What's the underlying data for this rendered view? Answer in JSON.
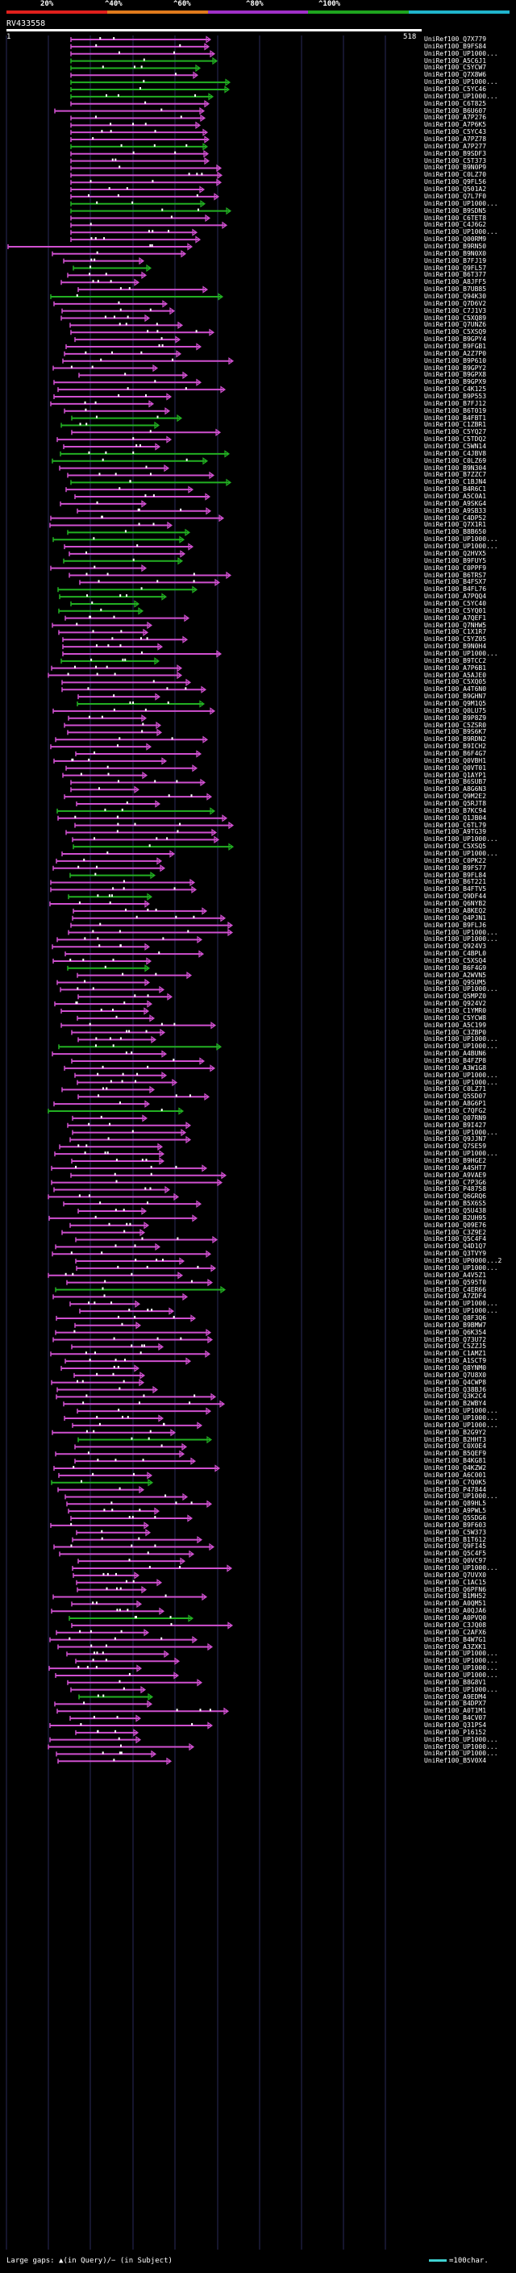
{
  "legend": {
    "labels": [
      "20%",
      "^40%",
      "^60%",
      "^80%",
      "^100%"
    ],
    "colors": [
      "#e0201c",
      "#e07a1c",
      "#a030c8",
      "#1ea51e",
      "#20b4cc"
    ]
  },
  "query": {
    "name": "RV433558",
    "start": "1",
    "end": "518"
  },
  "colors": {
    "magenta": "#d050d0",
    "green": "#22b022",
    "gray": "#888888",
    "cyan": "#40d0d0"
  },
  "hits": [
    "UniRef100_Q7X779",
    "UniRef100_B9FS84",
    "UniRef100_UP1000...",
    "UniRef100_A5C6J1",
    "UniRef100_C5YCW7",
    "UniRef100_Q7X8W6",
    "UniRef100_UP1000...",
    "UniRef100_C5YC46",
    "UniRef100_UP1000...",
    "UniRef100_C6T825",
    "UniRef100_B6U607",
    "UniRef100_A7P276",
    "UniRef100_A7P6K5",
    "UniRef100_C5YC43",
    "UniRef100_A7PZ78",
    "UniRef100_A7P277",
    "UniRef100_B9SDF3",
    "UniRef100_C5T373",
    "UniRef100_B9N0P9",
    "UniRef100_C0LZ70",
    "UniRef100_Q9FL56",
    "UniRef100_Q501A2",
    "UniRef100_Q7L7F0",
    "UniRef100_UP1000...",
    "UniRef100_B9SDN5",
    "UniRef100_C6TET8",
    "UniRef100_C4J6G2",
    "UniRef100_UP1000...",
    "UniRef100_Q00RM9",
    "UniRef100_B9RN50",
    "UniRef100_B9N0X0",
    "UniRef100_B7FJ19",
    "UniRef100_Q9FL57",
    "UniRef100_B6T377",
    "UniRef100_A8JFF5",
    "UniRef100_B7UB85",
    "UniRef100_Q94K30",
    "UniRef100_Q7D6V2",
    "UniRef100_C7J1V3",
    "UniRef100_C5XQ89",
    "UniRef100_Q7UNZ6",
    "UniRef100_C5XSQ9",
    "UniRef100_B9GPY4",
    "UniRef100_B9FGB1",
    "UniRef100_A2Z7P0",
    "UniRef100_B9P610",
    "UniRef100_B9GPY2",
    "UniRef100_B9GPX8",
    "UniRef100_B9GPX9",
    "UniRef100_C4K125",
    "UniRef100_B9P553",
    "UniRef100_B7FJ12",
    "UniRef100_B6T019",
    "UniRef100_B4FBT1",
    "UniRef100_C1ZBR1",
    "UniRef100_C5YQ27",
    "UniRef100_C5TDQ2",
    "UniRef100_C5WN14",
    "UniRef100_C4JBV8",
    "UniRef100_C0LZ69",
    "UniRef100_B9N304",
    "UniRef100_B7ZZC7",
    "UniRef100_C1BJN4",
    "UniRef100_B4R6C1",
    "UniRef100_A5C0A1",
    "UniRef100_A9SKG4",
    "UniRef100_A9SB33",
    "UniRef100_C4DP52",
    "UniRef100_Q7X1R1",
    "UniRef100_B8B650",
    "UniRef100_UP1000...",
    "UniRef100_UP1000...",
    "UniRef100_Q2HVX5",
    "UniRef100_B9FUY5",
    "UniRef100_C0PPF9",
    "UniRef100_B6TRS7",
    "UniRef100_B4FSX7",
    "UniRef100_B4FL76",
    "UniRef100_A7PQQ4",
    "UniRef100_C5YC40",
    "UniRef100_C5YQ01",
    "UniRef100_A7QEF1",
    "UniRef100_Q7NHW5",
    "UniRef100_C1X1R7",
    "UniRef100_C5YZ05",
    "UniRef100_B9N0H4",
    "UniRef100_UP1000...",
    "UniRef100_B9TCC2",
    "UniRef100_A7P6B1",
    "UniRef100_A5AJE0",
    "UniRef100_C5XQ05",
    "UniRef100_A4T6N0",
    "UniRef100_B9GHN7",
    "UniRef100_Q9M1Q5",
    "UniRef100_Q0LU75",
    "UniRef100_B9P8Z9",
    "UniRef100_C5ZSR0",
    "UniRef100_B9S6K7",
    "UniRef100_B9RDN2",
    "UniRef100_B9ICH2",
    "UniRef100_B6F4G7",
    "UniRef100_Q0VBH1",
    "UniRef100_Q0VT01",
    "UniRef100_Q1AYP1",
    "UniRef100_B6SUB7",
    "UniRef100_A8G6N3",
    "UniRef100_Q9M2E2",
    "UniRef100_Q5RJT8",
    "UniRef100_B7KC94",
    "UniRef100_Q1JB04",
    "UniRef100_C6TL79",
    "UniRef100_A9TG39",
    "UniRef100_UP1000...",
    "UniRef100_C5XSQ5",
    "UniRef100_UP1000...",
    "UniRef100_C0PK22",
    "UniRef100_B9FS77",
    "UniRef100_B9FL84",
    "UniRef100_B6T221",
    "UniRef100_B4FTV5",
    "UniRef100_Q9DF44",
    "UniRef100_Q6NYB2",
    "UniRef100_A8KEQ2",
    "UniRef100_Q4PJN1",
    "UniRef100_B9FLJ6",
    "UniRef100_UP1000...",
    "UniRef100_UP1000...",
    "UniRef100_Q924V3",
    "UniRef100_C4BPL0",
    "UniRef100_C5XSQ4",
    "UniRef100_B6F4G9",
    "UniRef100_A2WVN5",
    "UniRef100_Q9SUM5",
    "UniRef100_UP1000...",
    "UniRef100_Q5MPZ0",
    "UniRef100_Q924V2",
    "UniRef100_C1YMR0",
    "UniRef100_C5YCW8",
    "UniRef100_A5C199",
    "UniRef100_C3ZBP0",
    "UniRef100_UP1000...",
    "UniRef100_UP1000...",
    "UniRef100_A4BUN6",
    "UniRef100_B4FZP8",
    "UniRef100_A3W1G8",
    "UniRef100_UP1000...",
    "UniRef100_UP1000...",
    "UniRef100_C0LZ71",
    "UniRef100_Q5SD07",
    "UniRef100_A8G6P1",
    "UniRef100_C7QFG2",
    "UniRef100_Q07RN9",
    "UniRef100_B9I427",
    "UniRef100_UP1000...",
    "UniRef100_Q9JJN7",
    "UniRef100_Q7SE59",
    "UniRef100_UP1000...",
    "UniRef100_B9HGE2",
    "UniRef100_A4SHT7",
    "UniRef100_A9VAE9",
    "UniRef100_C7P3G6",
    "UniRef100_P48758",
    "UniRef100_Q6GRQ6",
    "UniRef100_B5X6S5",
    "UniRef100_Q5U438",
    "UniRef100_B2UH95",
    "UniRef100_Q09E76",
    "UniRef100_C3Z9E2",
    "UniRef100_Q5C4F4",
    "UniRef100_Q4D1Q7",
    "UniRef100_Q3TVY9",
    "UniRef100_UP0000...2",
    "UniRef100_UP1000...",
    "UniRef100_A4V5Z1",
    "UniRef100_Q595T0",
    "UniRef100_C4ER66",
    "UniRef100_A7ZDF4",
    "UniRef100_UP1000...",
    "UniRef100_UP1000...",
    "UniRef100_Q8F3Q6",
    "UniRef100_B9BMW7",
    "UniRef100_Q6K354",
    "UniRef100_Q73U72",
    "UniRef100_C5ZZJ5",
    "UniRef100_C1AMZ1",
    "UniRef100_A1SCT9",
    "UniRef100_Q8YNM0",
    "UniRef100_Q7U8X0",
    "UniRef100_Q4CWP8",
    "UniRef100_Q38BJ6",
    "UniRef100_Q3K2C4",
    "UniRef100_B2WBY4",
    "UniRef100_UP1000...",
    "UniRef100_UP1000...",
    "UniRef100_UP1000...",
    "UniRef100_B2G9Y2",
    "UniRef100_B2HHT3",
    "UniRef100_C0X0E4",
    "UniRef100_B5QEF9",
    "UniRef100_B4KG81",
    "UniRef100_Q4KZW2",
    "UniRef100_A6C001",
    "UniRef100_C7Q0K5",
    "UniRef100_P47844",
    "UniRef100_UP1000...",
    "UniRef100_Q89HL5",
    "UniRef100_A9PWL5",
    "UniRef100_Q5SDG6",
    "UniRef100_B9F603",
    "UniRef100_C5W373",
    "UniRef100_B1T612",
    "UniRef100_Q9FI45",
    "UniRef100_Q5C4F5",
    "UniRef100_Q0VC97",
    "UniRef100_UP1000...",
    "UniRef100_Q7UVX0",
    "UniRef100_C1AC15",
    "UniRef100_Q6PFN6",
    "UniRef100_B1MH52",
    "UniRef100_A0QM51",
    "UniRef100_A0QJA6",
    "UniRef100_A0PVQ0",
    "UniRef100_C3JQ08",
    "UniRef100_C2AFX6",
    "UniRef100_B4W7G1",
    "UniRef100_A3ZXK1",
    "UniRef100_UP1000...",
    "UniRef100_UP1000...",
    "UniRef100_UP1000...",
    "UniRef100_UP1000...",
    "UniRef100_B8G8V1",
    "UniRef100_UP1000...",
    "UniRef100_A9EDM4",
    "UniRef100_B4DPX7",
    "UniRef100_A0T1M1",
    "UniRef100_B4CV07",
    "UniRef100_Q31PS4",
    "UniRef100_P16152",
    "UniRef100_UP1000...",
    "UniRef100_UP1000...",
    "UniRef100_UP1000...",
    "UniRef100_B5V0X4"
  ],
  "footer": {
    "text": "Large gaps: ▲(in Query)/− (in Subject)",
    "scale": "=100char."
  }
}
